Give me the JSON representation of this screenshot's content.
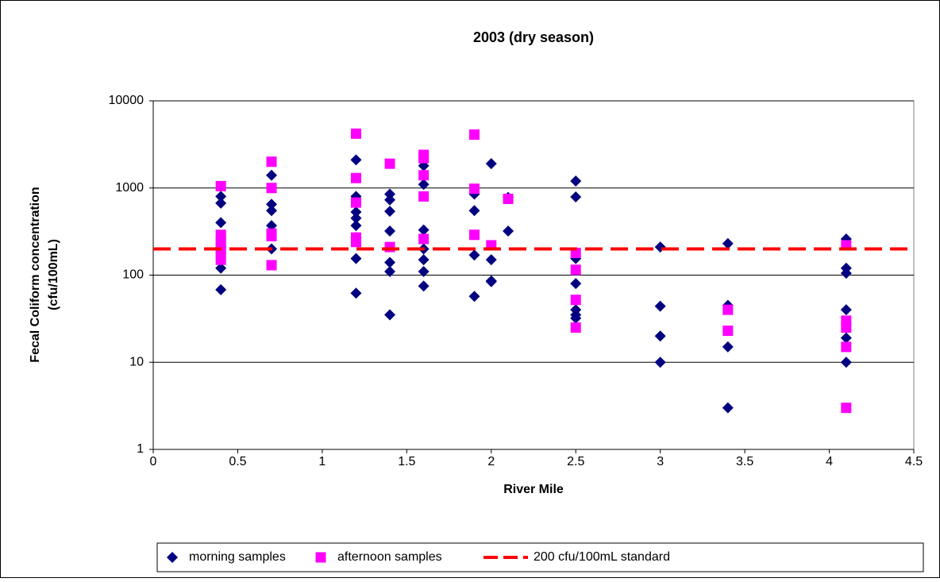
{
  "chart_data": {
    "type": "scatter",
    "title": "2003 (dry season)",
    "x_label": "River Mile",
    "y_label": [
      "Fecal Coliform concentration",
      "(cfu/100mL)"
    ],
    "log_y": true,
    "grid": true,
    "legend": "bottom",
    "xlim": [
      0,
      4.5
    ],
    "xticks": [
      0,
      0.5,
      1,
      1.5,
      2,
      2.5,
      3,
      3.5,
      4,
      4.5
    ],
    "ylim": [
      1,
      10000
    ],
    "yticks": [
      1,
      10,
      100,
      1000,
      10000
    ],
    "series": [
      {
        "name": "morning samples",
        "color": "#000080",
        "marker": "diamond",
        "x": [
          0.4,
          0.4,
          0.4,
          0.4,
          0.4,
          0.4,
          0.7,
          0.7,
          0.7,
          0.7,
          0.7,
          1.2,
          1.2,
          1.2,
          1.2,
          1.2,
          1.2,
          1.2,
          1.2,
          1.4,
          1.4,
          1.4,
          1.4,
          1.4,
          1.4,
          1.4,
          1.6,
          1.6,
          1.6,
          1.6,
          1.6,
          1.6,
          1.6,
          1.9,
          1.9,
          1.9,
          1.9,
          2,
          2,
          2,
          2,
          2.1,
          2.1,
          2.5,
          2.5,
          2.5,
          2.5,
          2.5,
          2.5,
          2.5,
          3,
          3,
          3,
          3,
          3.4,
          3.4,
          3.4,
          3.4,
          4.1,
          4.1,
          4.1,
          4.1,
          4.1,
          4.1
        ],
        "values": [
          800,
          670,
          400,
          210,
          120,
          68,
          1400,
          650,
          550,
          370,
          200,
          2100,
          800,
          530,
          450,
          370,
          270,
          155,
          62,
          850,
          730,
          540,
          320,
          140,
          110,
          35,
          1800,
          1100,
          330,
          200,
          150,
          110,
          75,
          850,
          550,
          170,
          57,
          1900,
          150,
          86,
          84,
          780,
          320,
          1200,
          790,
          155,
          80,
          40,
          35,
          32,
          210,
          44,
          20,
          10,
          230,
          45,
          15,
          3,
          260,
          120,
          105,
          40,
          19,
          10
        ]
      },
      {
        "name": "afternoon samples",
        "color": "#ff00ff",
        "marker": "square",
        "x": [
          0.4,
          0.4,
          0.4,
          0.4,
          0.4,
          0.4,
          0.4,
          0.7,
          0.7,
          0.7,
          0.7,
          0.7,
          1.2,
          1.2,
          1.2,
          1.2,
          1.2,
          1.4,
          1.4,
          1.6,
          1.6,
          1.6,
          1.6,
          1.6,
          1.9,
          1.9,
          1.9,
          2,
          2.1,
          2.5,
          2.5,
          2.5,
          2.5,
          3.4,
          3.4,
          4.1,
          4.1,
          4.1,
          4.1,
          4.1
        ],
        "values": [
          1050,
          290,
          260,
          230,
          200,
          175,
          150,
          2000,
          1000,
          300,
          280,
          130,
          4200,
          1300,
          680,
          270,
          240,
          1900,
          210,
          2400,
          2200,
          1400,
          800,
          260,
          4100,
          980,
          290,
          220,
          750,
          180,
          115,
          52,
          25,
          40,
          23,
          220,
          30,
          25,
          15,
          3
        ]
      }
    ],
    "reference_line": {
      "name": "200 cfu/100mL standard",
      "value": 200,
      "color": "#ff0000"
    }
  }
}
